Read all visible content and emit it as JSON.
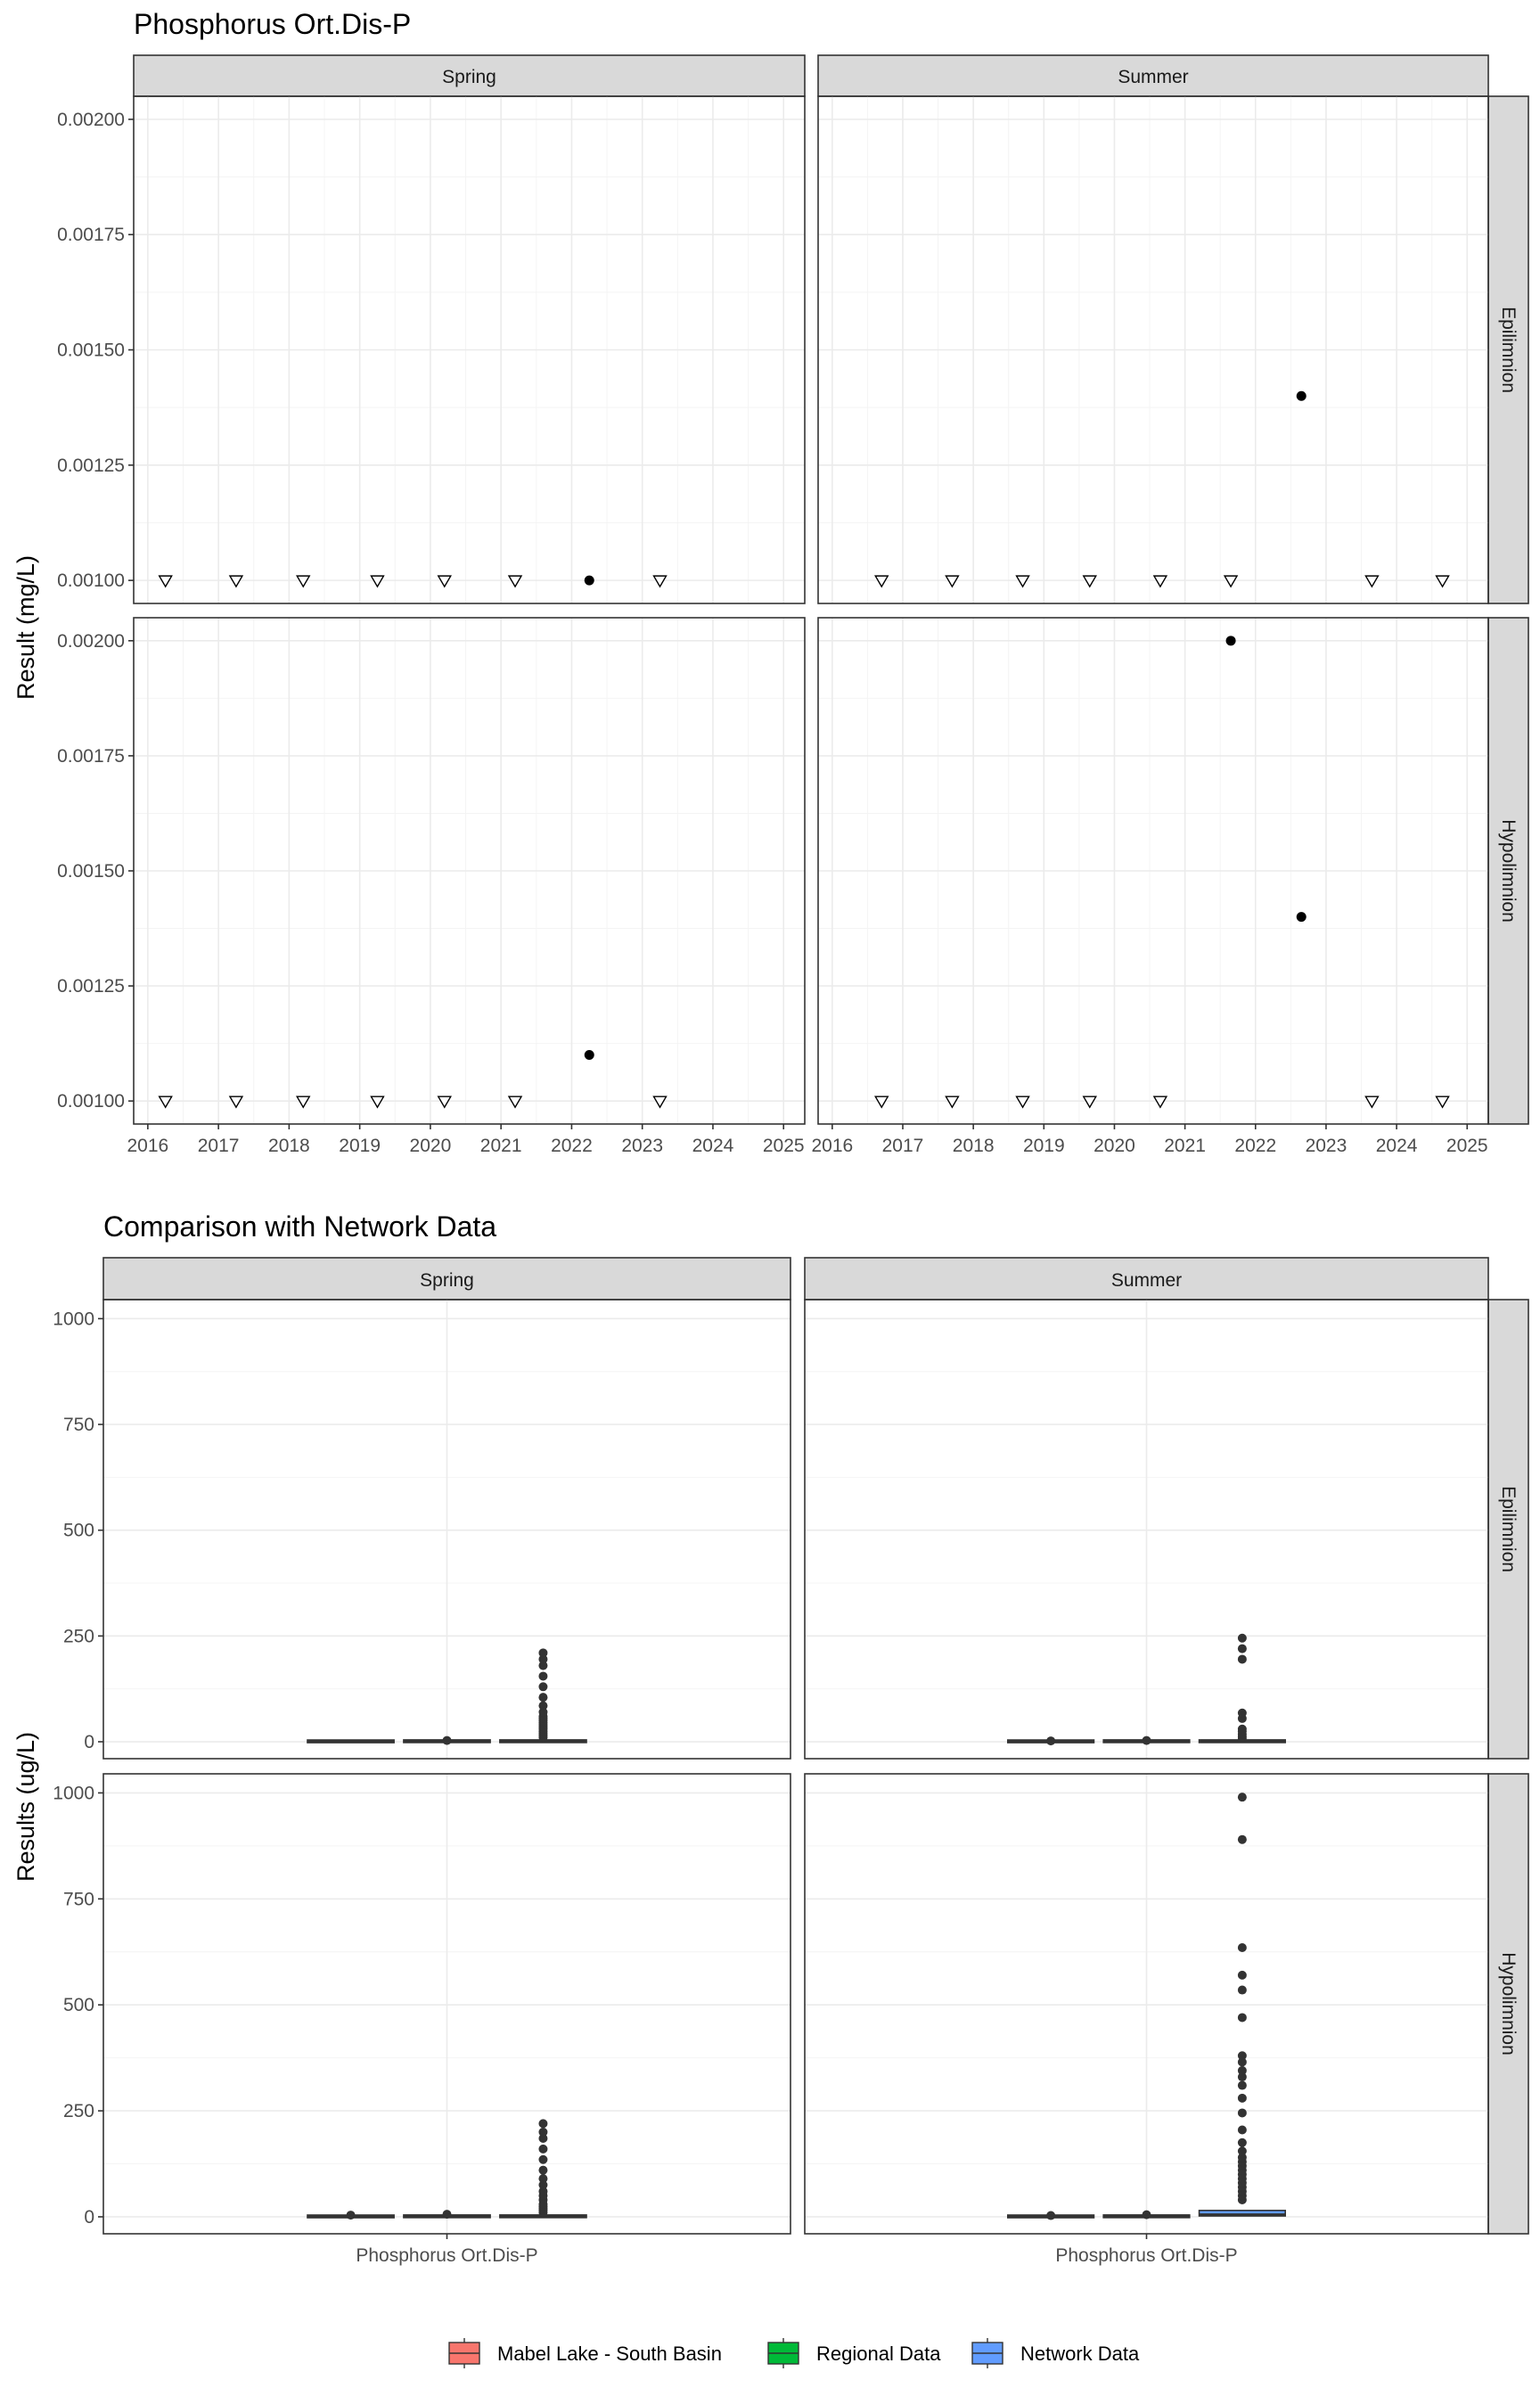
{
  "colors": {
    "mabel": "#f8766d",
    "regional": "#00ba38",
    "network": "#619cff",
    "box_line": "#333333",
    "detect_point": "#000000",
    "nondetect_edge": "#000000"
  },
  "top": {
    "title": "Phosphorus Ort.Dis-P",
    "ylabel": "Result (mg/L)",
    "y_ticks": [
      "0.00200",
      "0.00175",
      "0.00150",
      "0.00125",
      "0.00100"
    ],
    "x_ticks": [
      "2016",
      "2017",
      "2018",
      "2019",
      "2020",
      "2021",
      "2022",
      "2023",
      "2024",
      "2025"
    ],
    "strips": {
      "col1": "Spring",
      "col2": "Summer",
      "row1": "Epilimnion",
      "row2": "Hypolimnion"
    }
  },
  "bottom": {
    "title": "Comparison with Network Data",
    "ylabel": "Results (ug/L)",
    "y_ticks": [
      "1000",
      "750",
      "500",
      "250",
      "0"
    ],
    "x_tick": "Phosphorus Ort.Dis-P",
    "strips": {
      "col1": "Spring",
      "col2": "Summer",
      "row1": "Epilimnion",
      "row2": "Hypolimnion"
    }
  },
  "legend": [
    {
      "label": "Mabel Lake - South Basin",
      "color": "#f8766d"
    },
    {
      "label": "Regional Data",
      "color": "#00ba38"
    },
    {
      "label": "Network Data",
      "color": "#619cff"
    }
  ],
  "chart_data": [
    {
      "type": "scatter",
      "title": "Phosphorus Ort.Dis-P",
      "xlabel": "",
      "ylabel": "Result (mg/L)",
      "xlim": [
        2015.8,
        2025.3
      ],
      "ylim": [
        0.00095,
        0.00205
      ],
      "legend": "none",
      "facets": [
        {
          "season": "Spring",
          "layer": "Epilimnion",
          "points": [
            {
              "x": 2016.25,
              "y": 0.001,
              "nondetect": true
            },
            {
              "x": 2017.25,
              "y": 0.001,
              "nondetect": true
            },
            {
              "x": 2018.2,
              "y": 0.001,
              "nondetect": true
            },
            {
              "x": 2019.25,
              "y": 0.001,
              "nondetect": true
            },
            {
              "x": 2020.2,
              "y": 0.001,
              "nondetect": true
            },
            {
              "x": 2021.2,
              "y": 0.001,
              "nondetect": true
            },
            {
              "x": 2022.25,
              "y": 0.001,
              "nondetect": false
            },
            {
              "x": 2023.25,
              "y": 0.001,
              "nondetect": true
            }
          ]
        },
        {
          "season": "Summer",
          "layer": "Epilimnion",
          "points": [
            {
              "x": 2016.7,
              "y": 0.001,
              "nondetect": true
            },
            {
              "x": 2017.7,
              "y": 0.001,
              "nondetect": true
            },
            {
              "x": 2018.7,
              "y": 0.001,
              "nondetect": true
            },
            {
              "x": 2019.65,
              "y": 0.001,
              "nondetect": true
            },
            {
              "x": 2020.65,
              "y": 0.001,
              "nondetect": true
            },
            {
              "x": 2021.65,
              "y": 0.001,
              "nondetect": true
            },
            {
              "x": 2022.65,
              "y": 0.0014,
              "nondetect": false
            },
            {
              "x": 2023.65,
              "y": 0.001,
              "nondetect": true
            },
            {
              "x": 2024.65,
              "y": 0.001,
              "nondetect": true
            }
          ]
        },
        {
          "season": "Spring",
          "layer": "Hypolimnion",
          "points": [
            {
              "x": 2016.25,
              "y": 0.001,
              "nondetect": true
            },
            {
              "x": 2017.25,
              "y": 0.001,
              "nondetect": true
            },
            {
              "x": 2018.2,
              "y": 0.001,
              "nondetect": true
            },
            {
              "x": 2019.25,
              "y": 0.001,
              "nondetect": true
            },
            {
              "x": 2020.2,
              "y": 0.001,
              "nondetect": true
            },
            {
              "x": 2021.2,
              "y": 0.001,
              "nondetect": true
            },
            {
              "x": 2022.25,
              "y": 0.0011,
              "nondetect": false
            },
            {
              "x": 2023.25,
              "y": 0.001,
              "nondetect": true
            }
          ]
        },
        {
          "season": "Summer",
          "layer": "Hypolimnion",
          "points": [
            {
              "x": 2016.7,
              "y": 0.001,
              "nondetect": true
            },
            {
              "x": 2017.7,
              "y": 0.001,
              "nondetect": true
            },
            {
              "x": 2018.7,
              "y": 0.001,
              "nondetect": true
            },
            {
              "x": 2019.65,
              "y": 0.001,
              "nondetect": true
            },
            {
              "x": 2020.65,
              "y": 0.001,
              "nondetect": true
            },
            {
              "x": 2021.65,
              "y": 0.002,
              "nondetect": false
            },
            {
              "x": 2022.65,
              "y": 0.0014,
              "nondetect": false
            },
            {
              "x": 2023.65,
              "y": 0.001,
              "nondetect": true
            },
            {
              "x": 2024.65,
              "y": 0.001,
              "nondetect": true
            }
          ]
        }
      ]
    },
    {
      "type": "box",
      "title": "Comparison with Network Data",
      "xlabel": "",
      "ylabel": "Results (ug/L)",
      "categories": [
        "Phosphorus Ort.Dis-P"
      ],
      "ylim": [
        -40,
        1045
      ],
      "legend": "bottom",
      "series_names": [
        "Mabel Lake - South Basin",
        "Regional Data",
        "Network Data"
      ],
      "facets": [
        {
          "season": "Spring",
          "layer": "Epilimnion",
          "boxes": [
            {
              "series": "Mabel Lake - South Basin",
              "q1": 0.5,
              "median": 1,
              "q3": 1.5,
              "outliers": []
            },
            {
              "series": "Regional Data",
              "q1": 0.5,
              "median": 1,
              "q3": 2,
              "outliers": [
                3
              ]
            },
            {
              "series": "Network Data",
              "q1": 0.5,
              "median": 1,
              "q3": 2,
              "outliers": [
                10,
                15,
                20,
                25,
                30,
                35,
                40,
                45,
                50,
                55,
                60,
                70,
                85,
                105,
                130,
                155,
                180,
                195,
                210
              ]
            }
          ]
        },
        {
          "season": "Summer",
          "layer": "Epilimnion",
          "boxes": [
            {
              "series": "Mabel Lake - South Basin",
              "q1": 0.5,
              "median": 1,
              "q3": 1.5,
              "outliers": [
                2
              ]
            },
            {
              "series": "Regional Data",
              "q1": 0.5,
              "median": 1,
              "q3": 2,
              "outliers": [
                3
              ]
            },
            {
              "series": "Network Data",
              "q1": 0.5,
              "median": 1,
              "q3": 2,
              "outliers": [
                8,
                12,
                18,
                25,
                30,
                55,
                68,
                195,
                220,
                245
              ]
            }
          ]
        },
        {
          "season": "Spring",
          "layer": "Hypolimnion",
          "boxes": [
            {
              "series": "Mabel Lake - South Basin",
              "q1": 0.5,
              "median": 1,
              "q3": 1.5,
              "outliers": [
                4
              ]
            },
            {
              "series": "Regional Data",
              "q1": 0.5,
              "median": 1,
              "q3": 2,
              "outliers": [
                6
              ]
            },
            {
              "series": "Network Data",
              "q1": 0.5,
              "median": 1,
              "q3": 2,
              "outliers": [
                10,
                15,
                20,
                25,
                30,
                40,
                50,
                60,
                75,
                90,
                110,
                135,
                160,
                185,
                200,
                220
              ]
            }
          ]
        },
        {
          "season": "Summer",
          "layer": "Hypolimnion",
          "boxes": [
            {
              "series": "Mabel Lake - South Basin",
              "q1": 0.5,
              "median": 1,
              "q3": 1.5,
              "outliers": [
                3
              ]
            },
            {
              "series": "Regional Data",
              "q1": 0.5,
              "median": 1,
              "q3": 2,
              "outliers": [
                5
              ]
            },
            {
              "series": "Network Data",
              "q1": 2,
              "median": 5,
              "q3": 15,
              "outliers": [
                40,
                50,
                60,
                70,
                80,
                90,
                100,
                110,
                120,
                130,
                140,
                155,
                175,
                205,
                245,
                280,
                310,
                330,
                345,
                365,
                380,
                470,
                535,
                570,
                635,
                890,
                990
              ]
            }
          ]
        }
      ]
    }
  ]
}
